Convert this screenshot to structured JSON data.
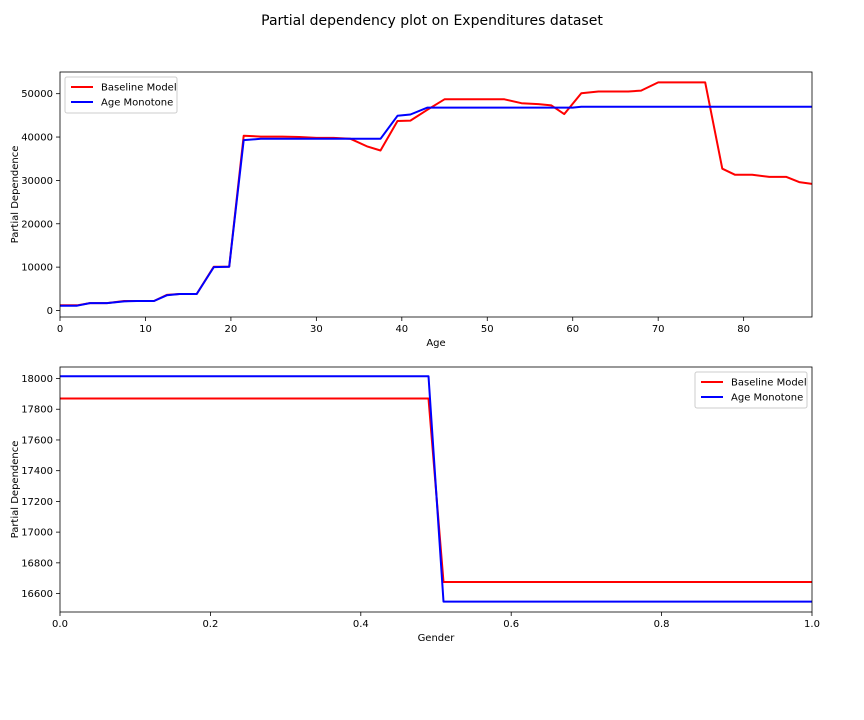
{
  "figure": {
    "title": "Partial dependency plot on Expenditures dataset"
  },
  "colors": {
    "baseline": "#ff0000",
    "monotone": "#0000ff",
    "axes": "#000000",
    "legend_border": "#cccccc"
  },
  "chart_data": [
    {
      "type": "line",
      "title": "",
      "xlabel": "Age",
      "ylabel": "Partial Dependence",
      "xlim": [
        0,
        88
      ],
      "ylim": [
        -1500,
        55000
      ],
      "xticks": [
        0,
        10,
        20,
        30,
        40,
        50,
        60,
        70,
        80
      ],
      "yticks": [
        0,
        10000,
        20000,
        30000,
        40000,
        50000
      ],
      "grid": false,
      "legend_position": "top-left",
      "series": [
        {
          "name": "Baseline Model",
          "color": "#ff0000",
          "x": [
            0,
            2,
            3.5,
            5.5,
            7.5,
            9,
            11,
            12.5,
            14,
            16,
            18,
            19.8,
            21.5,
            23.5,
            26,
            28,
            30,
            32,
            34,
            36,
            37.5,
            39.5,
            41,
            43,
            45,
            47,
            49,
            52,
            54,
            56,
            57.5,
            59,
            61,
            63,
            65,
            66.5,
            68,
            70,
            72,
            74,
            75.5,
            77.5,
            79,
            81,
            83,
            85,
            86.5,
            88
          ],
          "y": [
            1200,
            1200,
            1700,
            1700,
            2200,
            2200,
            2200,
            3600,
            3800,
            3800,
            10100,
            10100,
            40300,
            40100,
            40100,
            40000,
            39800,
            39800,
            39600,
            37800,
            36900,
            43700,
            43800,
            46300,
            48700,
            48700,
            48700,
            48700,
            47800,
            47600,
            47300,
            45300,
            50100,
            50500,
            50500,
            50500,
            50700,
            52600,
            52600,
            52600,
            52600,
            32700,
            31300,
            31300,
            30800,
            30800,
            29600,
            29200
          ]
        },
        {
          "name": "Age Monotone",
          "color": "#0000ff",
          "x": [
            0,
            2,
            3.5,
            5.5,
            7.5,
            9,
            11,
            12.5,
            14,
            16,
            18,
            19.8,
            21.5,
            23.5,
            26,
            28,
            30,
            32,
            34,
            36,
            37.5,
            39.5,
            41,
            43,
            45,
            47,
            50,
            55,
            60,
            61,
            65,
            70,
            75,
            80,
            85,
            88
          ],
          "y": [
            1100,
            1100,
            1700,
            1700,
            2100,
            2200,
            2200,
            3500,
            3800,
            3800,
            10000,
            10100,
            39300,
            39600,
            39600,
            39600,
            39600,
            39600,
            39600,
            39600,
            39600,
            44900,
            45200,
            46800,
            46800,
            46800,
            46800,
            46800,
            46800,
            47000,
            47000,
            47000,
            47000,
            47000,
            47000,
            47000
          ]
        }
      ]
    },
    {
      "type": "line",
      "title": "",
      "xlabel": "Gender",
      "ylabel": "Partial Dependence",
      "xlim": [
        0.0,
        1.0
      ],
      "ylim": [
        16480,
        18075
      ],
      "xticks": [
        "0.0",
        "0.2",
        "0.4",
        "0.6",
        "0.8",
        "1.0"
      ],
      "yticks": [
        16600,
        16800,
        17000,
        17200,
        17400,
        17600,
        17800,
        18000
      ],
      "grid": false,
      "legend_position": "top-right",
      "series": [
        {
          "name": "Baseline Model",
          "color": "#ff0000",
          "x": [
            0.0,
            0.49,
            0.51,
            1.0
          ],
          "y": [
            17870,
            17870,
            16675,
            16675
          ]
        },
        {
          "name": "Age Monotone",
          "color": "#0000ff",
          "x": [
            0.0,
            0.49,
            0.51,
            1.0
          ],
          "y": [
            18015,
            18015,
            16548,
            16548
          ]
        }
      ]
    }
  ]
}
